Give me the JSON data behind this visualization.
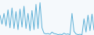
{
  "values": [
    55,
    30,
    60,
    25,
    70,
    20,
    75,
    18,
    65,
    15,
    72,
    22,
    80,
    18,
    60,
    12,
    68,
    15,
    85,
    18,
    90,
    20,
    5,
    3,
    4,
    2,
    8,
    4,
    3,
    1,
    2,
    1,
    5,
    2,
    3,
    1,
    60,
    10,
    3,
    1,
    2,
    1,
    45,
    8,
    55,
    12,
    58,
    14
  ],
  "line_color": "#5bafd6",
  "background_color": "#f5f9fc",
  "linewidth": 0.7,
  "fill": false
}
